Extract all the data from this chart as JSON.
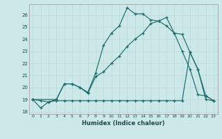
{
  "title": "",
  "xlabel": "Humidex (Indice chaleur)",
  "bg_color": "#cce8e8",
  "line_color": "#1a6b6b",
  "grid_color": "#b8d8d8",
  "xlim": [
    -0.5,
    23.5
  ],
  "ylim": [
    17.8,
    26.9
  ],
  "xticks": [
    0,
    1,
    2,
    3,
    4,
    5,
    6,
    7,
    8,
    9,
    10,
    11,
    12,
    13,
    14,
    15,
    16,
    17,
    18,
    19,
    20,
    21,
    22,
    23
  ],
  "yticks": [
    18,
    19,
    20,
    21,
    22,
    23,
    24,
    25,
    26
  ],
  "line1_x": [
    0,
    1,
    2,
    3,
    4,
    5,
    6,
    7,
    8,
    9,
    10,
    11,
    12,
    13,
    14,
    15,
    16,
    17,
    18,
    19,
    20,
    21,
    22,
    23
  ],
  "line1_y": [
    19,
    18.3,
    18.8,
    19,
    20.3,
    20.3,
    20.0,
    19.6,
    21.2,
    23.5,
    24.5,
    25.1,
    26.6,
    26.1,
    26.1,
    25.6,
    25.5,
    25.1,
    24.5,
    23.0,
    21.5,
    19.4,
    19.3,
    18.9
  ],
  "line2_x": [
    0,
    3,
    4,
    5,
    6,
    7,
    8,
    9,
    10,
    11,
    12,
    13,
    14,
    15,
    16,
    17,
    18,
    19,
    20,
    21,
    22,
    23
  ],
  "line2_y": [
    19,
    19.0,
    20.3,
    20.3,
    20.0,
    19.5,
    20.9,
    21.3,
    22.0,
    22.6,
    23.4,
    24.0,
    24.5,
    25.3,
    25.5,
    25.8,
    24.5,
    24.4,
    22.9,
    21.5,
    19.3,
    18.9
  ],
  "line3_x": [
    0,
    1,
    2,
    3,
    4,
    5,
    6,
    7,
    8,
    9,
    10,
    11,
    12,
    13,
    14,
    15,
    16,
    17,
    18,
    19,
    20,
    21,
    22,
    23
  ],
  "line3_y": [
    19,
    18.9,
    18.8,
    18.9,
    18.9,
    18.9,
    18.9,
    18.9,
    18.9,
    18.9,
    18.9,
    18.9,
    18.9,
    18.9,
    18.9,
    18.9,
    18.9,
    18.9,
    18.9,
    18.9,
    22.9,
    21.5,
    19.0,
    18.9
  ]
}
